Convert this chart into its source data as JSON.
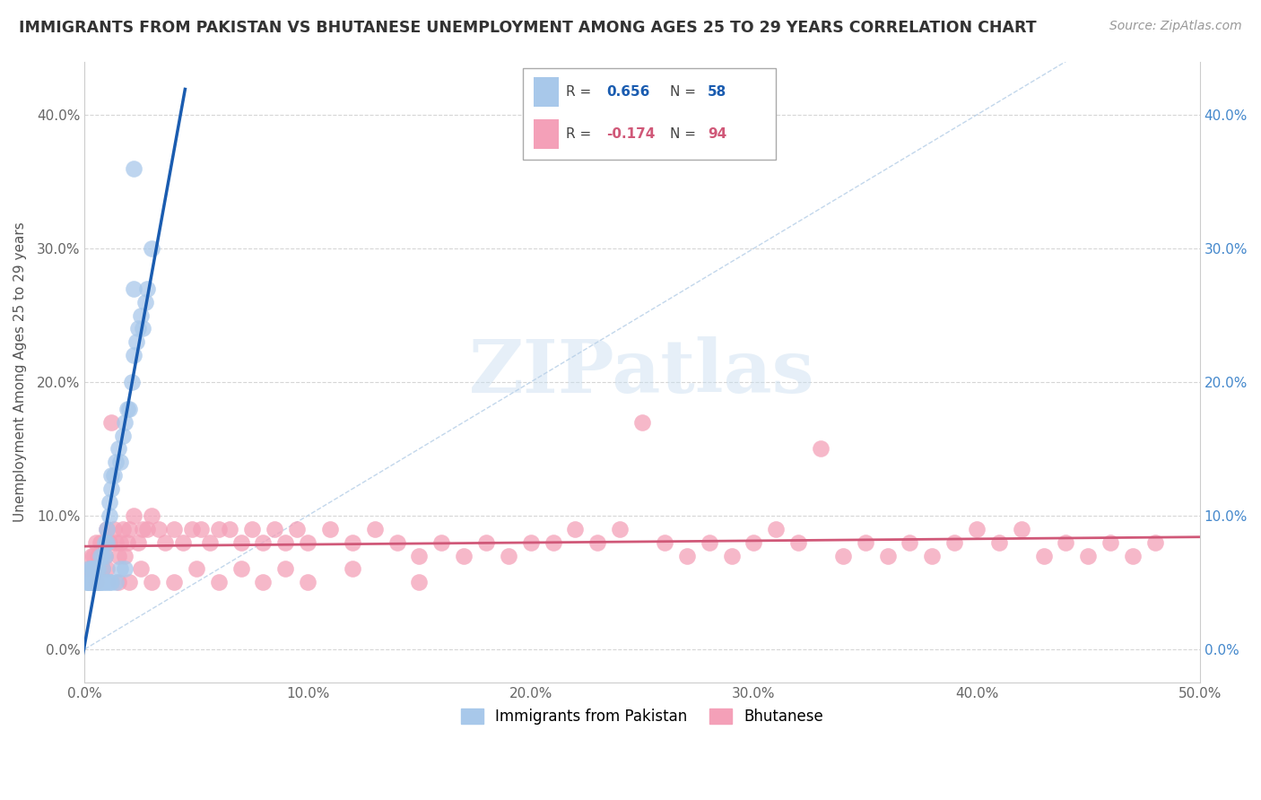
{
  "title": "IMMIGRANTS FROM PAKISTAN VS BHUTANESE UNEMPLOYMENT AMONG AGES 25 TO 29 YEARS CORRELATION CHART",
  "source": "Source: ZipAtlas.com",
  "ylabel": "Unemployment Among Ages 25 to 29 years",
  "xlim": [
    0,
    0.5
  ],
  "ylim": [
    -0.025,
    0.44
  ],
  "xticks": [
    0.0,
    0.1,
    0.2,
    0.3,
    0.4,
    0.5
  ],
  "xticklabels": [
    "0.0%",
    "10.0%",
    "20.0%",
    "30.0%",
    "40.0%",
    "50.0%"
  ],
  "yticks": [
    0.0,
    0.1,
    0.2,
    0.3,
    0.4
  ],
  "yticklabels": [
    "0.0%",
    "10.0%",
    "20.0%",
    "30.0%",
    "40.0%"
  ],
  "right_yticklabels": [
    "0.0%",
    "10.0%",
    "20.0%",
    "30.0%",
    "40.0%"
  ],
  "color_pakistan": "#a8c8ea",
  "color_bhutanese": "#f4a0b8",
  "color_line_pakistan": "#1a5cb0",
  "color_line_bhutanese": "#d05878",
  "color_diagonal": "#b8d0e8",
  "background_color": "#ffffff",
  "pakistan_x": [
    0.001,
    0.002,
    0.002,
    0.003,
    0.003,
    0.004,
    0.004,
    0.005,
    0.005,
    0.006,
    0.006,
    0.007,
    0.007,
    0.008,
    0.008,
    0.009,
    0.009,
    0.01,
    0.01,
    0.011,
    0.011,
    0.012,
    0.012,
    0.013,
    0.014,
    0.015,
    0.016,
    0.017,
    0.018,
    0.019,
    0.02,
    0.021,
    0.022,
    0.023,
    0.024,
    0.025,
    0.026,
    0.027,
    0.028,
    0.03,
    0.001,
    0.002,
    0.003,
    0.003,
    0.004,
    0.005,
    0.006,
    0.007,
    0.008,
    0.009,
    0.01,
    0.011,
    0.012,
    0.014,
    0.016,
    0.018,
    0.022,
    0.022
  ],
  "pakistan_y": [
    0.05,
    0.06,
    0.05,
    0.06,
    0.05,
    0.05,
    0.06,
    0.05,
    0.06,
    0.05,
    0.06,
    0.05,
    0.07,
    0.06,
    0.07,
    0.07,
    0.08,
    0.08,
    0.09,
    0.1,
    0.11,
    0.12,
    0.13,
    0.13,
    0.14,
    0.15,
    0.14,
    0.16,
    0.17,
    0.18,
    0.18,
    0.2,
    0.22,
    0.23,
    0.24,
    0.25,
    0.24,
    0.26,
    0.27,
    0.3,
    0.05,
    0.05,
    0.05,
    0.06,
    0.05,
    0.05,
    0.05,
    0.05,
    0.05,
    0.05,
    0.05,
    0.05,
    0.05,
    0.05,
    0.06,
    0.06,
    0.36,
    0.27
  ],
  "bhutanese_x": [
    0.002,
    0.003,
    0.004,
    0.005,
    0.006,
    0.007,
    0.008,
    0.009,
    0.01,
    0.011,
    0.012,
    0.013,
    0.014,
    0.015,
    0.016,
    0.017,
    0.018,
    0.019,
    0.02,
    0.022,
    0.024,
    0.026,
    0.028,
    0.03,
    0.033,
    0.036,
    0.04,
    0.044,
    0.048,
    0.052,
    0.056,
    0.06,
    0.065,
    0.07,
    0.075,
    0.08,
    0.085,
    0.09,
    0.095,
    0.1,
    0.11,
    0.12,
    0.13,
    0.14,
    0.15,
    0.16,
    0.17,
    0.18,
    0.19,
    0.2,
    0.21,
    0.22,
    0.23,
    0.24,
    0.25,
    0.26,
    0.27,
    0.28,
    0.29,
    0.3,
    0.31,
    0.32,
    0.33,
    0.34,
    0.35,
    0.36,
    0.37,
    0.38,
    0.39,
    0.4,
    0.41,
    0.42,
    0.43,
    0.44,
    0.45,
    0.46,
    0.47,
    0.48,
    0.005,
    0.01,
    0.015,
    0.02,
    0.025,
    0.03,
    0.04,
    0.05,
    0.06,
    0.07,
    0.08,
    0.09,
    0.1,
    0.12,
    0.15
  ],
  "bhutanese_y": [
    0.06,
    0.07,
    0.07,
    0.08,
    0.07,
    0.08,
    0.06,
    0.07,
    0.09,
    0.08,
    0.17,
    0.09,
    0.08,
    0.07,
    0.08,
    0.09,
    0.07,
    0.08,
    0.09,
    0.1,
    0.08,
    0.09,
    0.09,
    0.1,
    0.09,
    0.08,
    0.09,
    0.08,
    0.09,
    0.09,
    0.08,
    0.09,
    0.09,
    0.08,
    0.09,
    0.08,
    0.09,
    0.08,
    0.09,
    0.08,
    0.09,
    0.08,
    0.09,
    0.08,
    0.07,
    0.08,
    0.07,
    0.08,
    0.07,
    0.08,
    0.08,
    0.09,
    0.08,
    0.09,
    0.17,
    0.08,
    0.07,
    0.08,
    0.07,
    0.08,
    0.09,
    0.08,
    0.15,
    0.07,
    0.08,
    0.07,
    0.08,
    0.07,
    0.08,
    0.09,
    0.08,
    0.09,
    0.07,
    0.08,
    0.07,
    0.08,
    0.07,
    0.08,
    0.05,
    0.06,
    0.05,
    0.05,
    0.06,
    0.05,
    0.05,
    0.06,
    0.05,
    0.06,
    0.05,
    0.06,
    0.05,
    0.06,
    0.05
  ]
}
